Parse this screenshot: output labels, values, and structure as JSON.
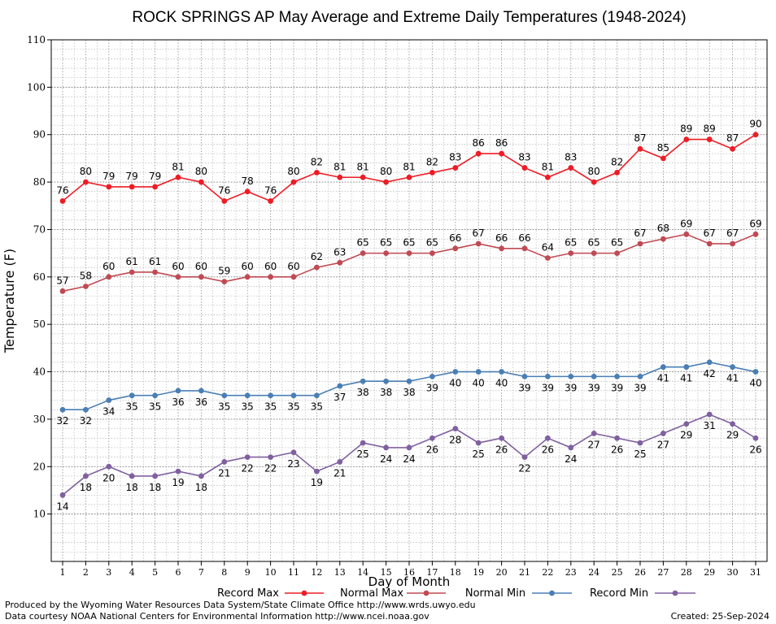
{
  "chart_data": {
    "type": "line",
    "title": "ROCK SPRINGS AP May Average and Extreme Daily Temperatures (1948-2024)",
    "xlabel": "Day of Month",
    "ylabel": "Temperature (F)",
    "x": [
      1,
      2,
      3,
      4,
      5,
      6,
      7,
      8,
      9,
      10,
      11,
      12,
      13,
      14,
      15,
      16,
      17,
      18,
      19,
      20,
      21,
      22,
      23,
      24,
      25,
      26,
      27,
      28,
      29,
      30,
      31
    ],
    "xlim": [
      1,
      31
    ],
    "ylim": [
      10,
      110
    ],
    "yticks": [
      10,
      20,
      30,
      40,
      50,
      60,
      70,
      80,
      90,
      100,
      110
    ],
    "grid": true,
    "legend_position": "bottom",
    "series": [
      {
        "name": "Record Max",
        "color": "#ee1c25",
        "values": [
          76,
          80,
          79,
          79,
          79,
          81,
          80,
          76,
          78,
          76,
          80,
          82,
          81,
          81,
          80,
          81,
          82,
          83,
          86,
          86,
          83,
          81,
          83,
          80,
          82,
          87,
          85,
          89,
          89,
          87,
          90
        ],
        "label_pos": "above"
      },
      {
        "name": "Normal Max",
        "color": "#c04a53",
        "values": [
          57,
          58,
          60,
          61,
          61,
          60,
          60,
          59,
          60,
          60,
          60,
          62,
          63,
          65,
          65,
          65,
          65,
          66,
          67,
          66,
          66,
          64,
          65,
          65,
          65,
          67,
          68,
          69,
          67,
          67,
          69
        ],
        "label_pos": "above"
      },
      {
        "name": "Normal Min",
        "color": "#4a7fb5",
        "values": [
          32,
          32,
          34,
          35,
          35,
          36,
          36,
          35,
          35,
          35,
          35,
          35,
          37,
          38,
          38,
          38,
          39,
          40,
          40,
          40,
          39,
          39,
          39,
          39,
          39,
          39,
          41,
          41,
          42,
          41,
          40
        ],
        "label_pos": "below"
      },
      {
        "name": "Record Min",
        "color": "#8060a0",
        "values": [
          14,
          18,
          20,
          18,
          18,
          19,
          18,
          21,
          22,
          22,
          23,
          19,
          21,
          25,
          24,
          24,
          26,
          28,
          25,
          26,
          22,
          26,
          24,
          27,
          26,
          25,
          27,
          29,
          31,
          29,
          26
        ],
        "label_pos": "below"
      }
    ]
  },
  "footer": {
    "left_line1": "Produced by the Wyoming Water Resources Data System/State Climate Office http://www.wrds.uwyo.edu",
    "left_line2": "Data courtesy NOAA National Centers for Environmental Information http://www.ncei.noaa.gov",
    "created": "Created:  25-Sep-2024"
  }
}
